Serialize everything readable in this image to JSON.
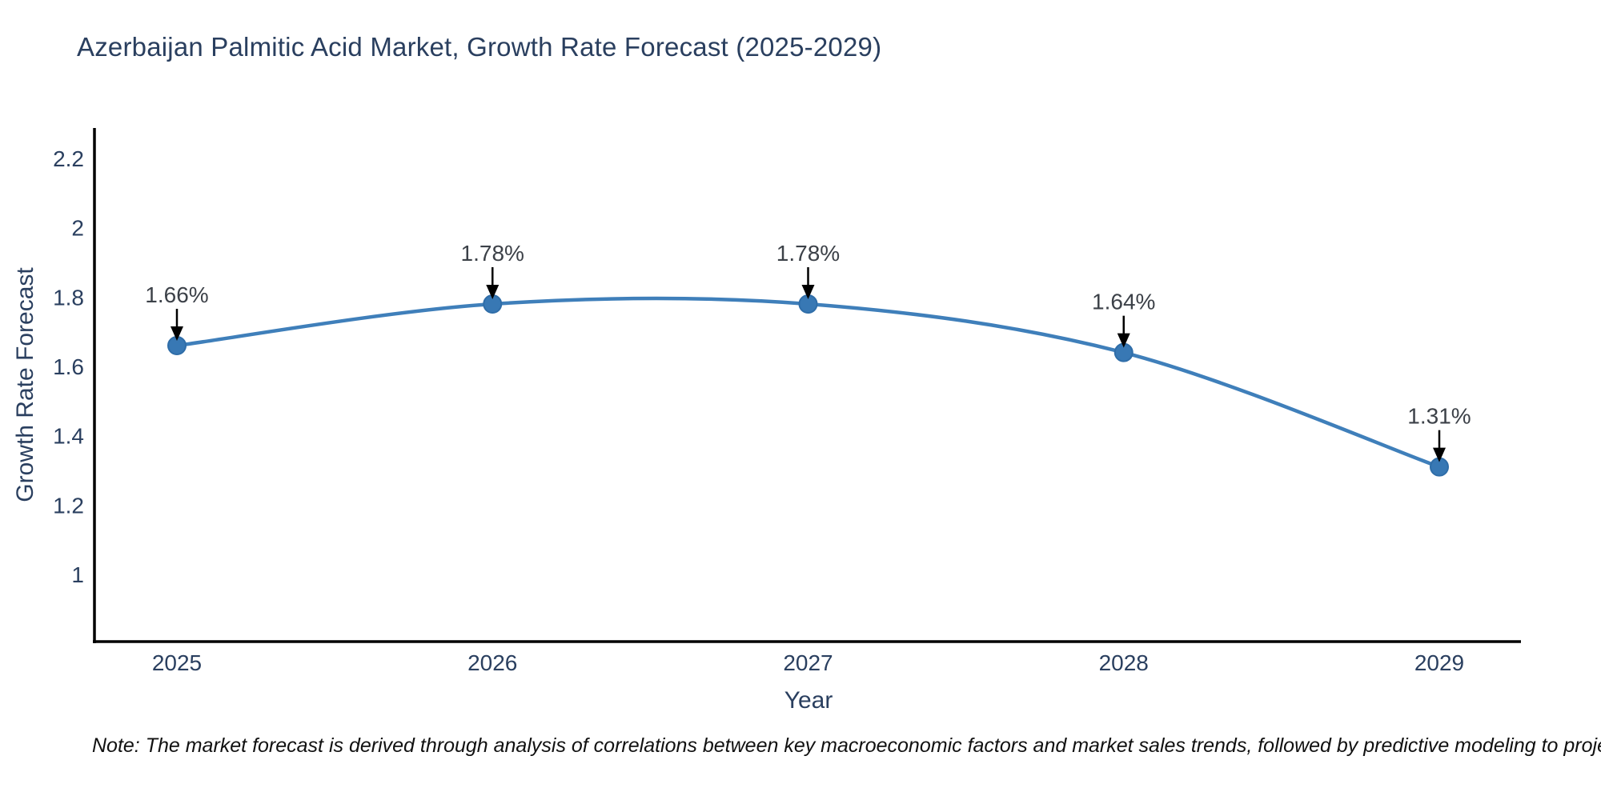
{
  "title": "Azerbaijan Palmitic Acid Market, Growth Rate Forecast (2025-2029)",
  "note": "Note: The market forecast is derived through analysis of correlations between key macroeconomic factors and market sales trends, followed by predictive modeling to project future sales",
  "colors": {
    "title_text": "#2a3f5f",
    "axis_text": "#2a3f5f",
    "axis_line": "#000000",
    "line": "#3f7fba",
    "marker_fill": "#3878b4",
    "marker_edge": "#2f6da8",
    "annotation_text": "#3c4148",
    "arrow": "#000000",
    "background": "#ffffff"
  },
  "chart_data": {
    "type": "line",
    "title": "Azerbaijan Palmitic Acid Market, Growth Rate Forecast (2025-2029)",
    "xlabel": "Year",
    "ylabel": "Growth Rate Forecast",
    "x": [
      2025,
      2026,
      2027,
      2028,
      2029
    ],
    "x_ticks": [
      "2025",
      "2026",
      "2027",
      "2028",
      "2029"
    ],
    "series": [
      {
        "name": "Growth Rate Forecast (%)",
        "values": [
          1.66,
          1.78,
          1.78,
          1.64,
          1.31
        ]
      }
    ],
    "point_labels": [
      "1.66%",
      "1.78%",
      "1.78%",
      "1.64%",
      "1.31%"
    ],
    "y_ticks": [
      1,
      1.2,
      1.4,
      1.6,
      1.8,
      2,
      2.2
    ],
    "ylim": [
      0.8,
      2.28
    ],
    "grid": false,
    "legend": false,
    "line_shape": "spline",
    "marker": "circle",
    "annotation_arrows": true
  }
}
